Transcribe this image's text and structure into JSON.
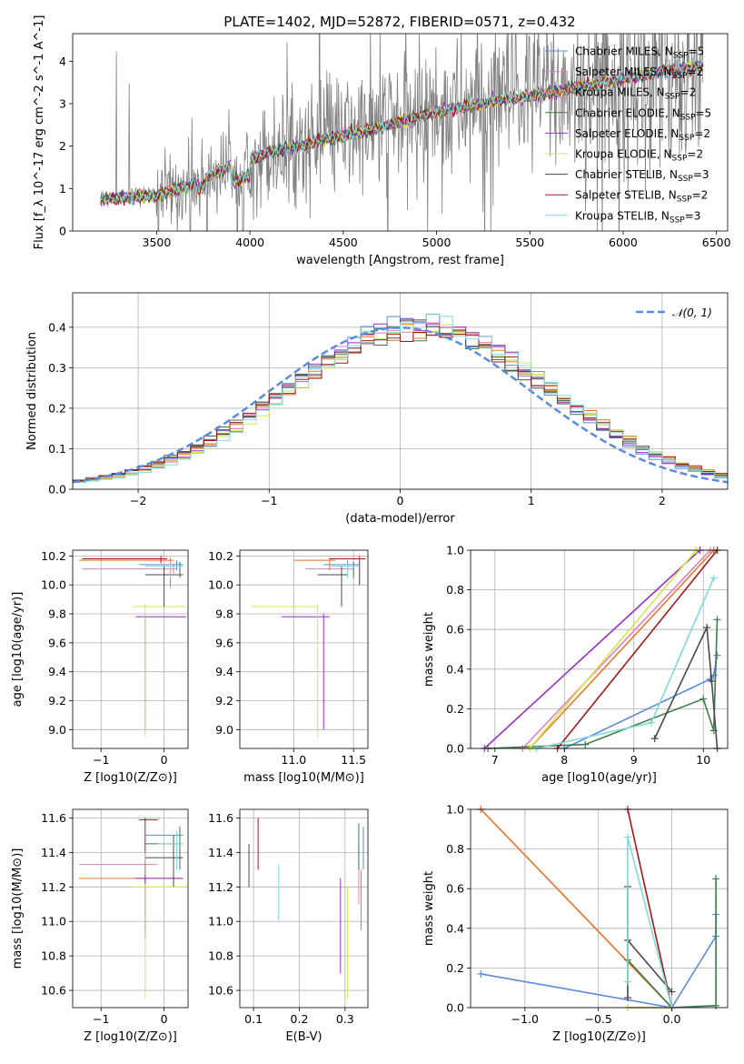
{
  "title": "PLATE=1402, MJD=52872, FIBERID=0571, z=0.432",
  "colors": {
    "Chabrier MILES": "#5b8bd9",
    "Salpeter MILES": "#e37fbd",
    "Kroupa MILES": "#e8792a",
    "Chabrier ELODIE": "#3e7c4e",
    "Salpeter ELODIE": "#9b2fc0",
    "Kroupa ELODIE": "#d4e84a",
    "Chabrier STELIB": "#4a4a4a",
    "Salpeter STELIB": "#a01818",
    "Kroupa STELIB": "#7fdadc",
    "data": "#808080",
    "normal": "#5b8bd9"
  },
  "models": [
    {
      "name": "Chabrier MILES",
      "nssp": "5"
    },
    {
      "name": "Salpeter MILES",
      "nssp": "2"
    },
    {
      "name": "Kroupa MILES",
      "nssp": "2"
    },
    {
      "name": "Chabrier ELODIE",
      "nssp": "5"
    },
    {
      "name": "Salpeter ELODIE",
      "nssp": "2"
    },
    {
      "name": "Kroupa ELODIE",
      "nssp": "2"
    },
    {
      "name": "Chabrier STELIB",
      "nssp": "3"
    },
    {
      "name": "Salpeter STELIB",
      "nssp": "2"
    },
    {
      "name": "Kroupa STELIB",
      "nssp": "3"
    }
  ],
  "chart_data": [
    {
      "type": "line",
      "title": "PLATE=1402, MJD=52872, FIBERID=0571, z=0.432",
      "xlabel": "wavelength [Angstrom, rest frame]",
      "ylabel": "Flux [f_λ 10^-17 erg cm^-2 s^-1 A^-1]",
      "xlim": [
        3050,
        6560
      ],
      "ylim": [
        0,
        4.65
      ],
      "xticks": [
        3500,
        4000,
        4500,
        5000,
        5500,
        6000,
        6500
      ],
      "yticks": [
        0,
        1,
        2,
        3,
        4
      ],
      "continuum": {
        "x": [
          3200,
          3500,
          3700,
          3900,
          4100,
          4400,
          4700,
          5000,
          5300,
          5600,
          5900,
          6200,
          6430
        ],
        "y": [
          0.75,
          0.85,
          1.1,
          1.55,
          1.85,
          2.15,
          2.45,
          2.8,
          3.05,
          3.25,
          3.5,
          3.75,
          3.9
        ]
      },
      "legend_position": "upper right"
    },
    {
      "type": "bar",
      "xlabel": "(data-model)/error",
      "ylabel": "Normed distribution",
      "xlim": [
        -2.5,
        2.5
      ],
      "ylim": [
        0,
        0.485
      ],
      "xticks": [
        -2,
        -1,
        0,
        1,
        2
      ],
      "yticks": [
        0.0,
        0.1,
        0.2,
        0.3,
        0.4
      ],
      "bin_width": 0.1,
      "series": [
        {
          "name": "N(0,1)",
          "mean": 0,
          "sigma": 1
        }
      ],
      "legend_position": "upper right"
    },
    {
      "type": "scatter",
      "xlabel": "Z [log10(Z/Z⊙)]",
      "ylabel": "age [log10(age/yr)]",
      "xlim": [
        -1.45,
        0.38
      ],
      "ylim": [
        8.87,
        10.24
      ],
      "xticks": [
        -1,
        0
      ],
      "yticks": [
        9.0,
        9.2,
        9.4,
        9.6,
        9.8,
        10.0,
        10.2
      ],
      "points": [
        {
          "model": "Chabrier MILES",
          "x": 0.2,
          "y": 10.14,
          "xlo": -0.4,
          "xhi": 0.3,
          "ylo": 10.1,
          "yhi": 10.17
        },
        {
          "model": "Salpeter MILES",
          "x": 0.15,
          "y": 10.11,
          "xlo": -1.3,
          "xhi": 0.2,
          "ylo": 10.08,
          "yhi": 10.15
        },
        {
          "model": "Kroupa MILES",
          "x": 0.1,
          "y": 10.17,
          "xlo": -1.35,
          "xhi": 0.15,
          "ylo": 9.98,
          "yhi": 10.19
        },
        {
          "model": "Chabrier ELODIE",
          "x": 0.25,
          "y": 10.13,
          "xlo": -0.3,
          "xhi": 0.3,
          "ylo": 10.05,
          "yhi": 10.16
        },
        {
          "model": "Salpeter ELODIE",
          "x": -0.3,
          "y": 9.78,
          "xlo": -0.45,
          "xhi": 0.35,
          "ylo": 9.0,
          "yhi": 9.8
        },
        {
          "model": "Kroupa ELODIE",
          "x": -0.3,
          "y": 9.85,
          "xlo": -0.5,
          "xhi": 0.35,
          "ylo": 8.95,
          "yhi": 9.87
        },
        {
          "model": "Chabrier STELIB",
          "x": 0.0,
          "y": 10.07,
          "xlo": -0.3,
          "xhi": 0.3,
          "ylo": 9.85,
          "yhi": 10.13
        },
        {
          "model": "Salpeter STELIB",
          "x": -0.05,
          "y": 10.18,
          "xlo": -1.3,
          "xhi": 0.05,
          "ylo": 10.15,
          "yhi": 10.2
        },
        {
          "model": "Kroupa STELIB",
          "x": 0.1,
          "y": 10.13,
          "xlo": -0.3,
          "xhi": 0.3,
          "ylo": 10.05,
          "yhi": 10.15
        }
      ]
    },
    {
      "type": "scatter",
      "xlabel": "mass [log10(M/M⊙)]",
      "ylabel": "",
      "xlim": [
        10.55,
        11.62
      ],
      "ylim": [
        8.87,
        10.24
      ],
      "xticks": [
        11.0,
        11.5
      ],
      "yticks": [
        9.0,
        9.2,
        9.4,
        9.6,
        9.8,
        10.0,
        10.2
      ],
      "points": [
        {
          "model": "Chabrier MILES",
          "x": 11.45,
          "y": 10.14,
          "xlo": 11.25,
          "xhi": 11.55,
          "ylo": 10.1,
          "yhi": 10.17
        },
        {
          "model": "Salpeter MILES",
          "x": 11.45,
          "y": 10.11,
          "xlo": 11.1,
          "xhi": 11.5,
          "ylo": 10.08,
          "yhi": 10.15
        },
        {
          "model": "Kroupa MILES",
          "x": 11.3,
          "y": 10.17,
          "xlo": 11.0,
          "xhi": 11.35,
          "ylo": 10.1,
          "yhi": 10.19
        },
        {
          "model": "Chabrier ELODIE",
          "x": 11.5,
          "y": 10.13,
          "xlo": 11.3,
          "xhi": 11.55,
          "ylo": 10.05,
          "yhi": 10.16
        },
        {
          "model": "Salpeter ELODIE",
          "x": 11.25,
          "y": 9.78,
          "xlo": 10.9,
          "xhi": 11.3,
          "ylo": 9.0,
          "yhi": 9.8
        },
        {
          "model": "Kroupa ELODIE",
          "x": 11.2,
          "y": 9.85,
          "xlo": 10.65,
          "xhi": 11.2,
          "ylo": 8.95,
          "yhi": 9.87
        },
        {
          "model": "Chabrier STELIB",
          "x": 11.4,
          "y": 10.07,
          "xlo": 11.2,
          "xhi": 11.45,
          "ylo": 9.85,
          "yhi": 10.13
        },
        {
          "model": "Salpeter STELIB",
          "x": 11.55,
          "y": 10.18,
          "xlo": 11.3,
          "xhi": 11.6,
          "ylo": 10.0,
          "yhi": 10.2
        },
        {
          "model": "Kroupa STELIB",
          "x": 11.45,
          "y": 10.13,
          "xlo": 11.3,
          "xhi": 11.55,
          "ylo": 10.05,
          "yhi": 10.15
        }
      ]
    },
    {
      "type": "line",
      "xlabel": "age [log10(age/yr)]",
      "ylabel": "mass weight",
      "xlim": [
        6.65,
        10.35
      ],
      "ylim": [
        0,
        1.0
      ],
      "xticks": [
        7,
        8,
        9,
        10
      ],
      "yticks": [
        0.0,
        0.2,
        0.4,
        0.6,
        0.8,
        1.0
      ],
      "series": [
        {
          "name": "Chabrier MILES",
          "x": [
            8.0,
            10.1,
            10.15,
            10.2
          ],
          "y": [
            0.0,
            0.35,
            0.37,
            0.47
          ]
        },
        {
          "name": "Salpeter MILES",
          "x": [
            7.4,
            10.1
          ],
          "y": [
            0.0,
            1.0
          ]
        },
        {
          "name": "Kroupa MILES",
          "x": [
            7.5,
            10.15
          ],
          "y": [
            0.0,
            1.0
          ]
        },
        {
          "name": "Chabrier ELODIE",
          "x": [
            6.9,
            8.3,
            10.0,
            10.15,
            10.2
          ],
          "y": [
            0.0,
            0.02,
            0.25,
            0.09,
            0.65
          ]
        },
        {
          "name": "Salpeter ELODIE",
          "x": [
            6.85,
            9.95
          ],
          "y": [
            0.0,
            1.0
          ]
        },
        {
          "name": "Kroupa ELODIE",
          "x": [
            7.5,
            9.9
          ],
          "y": [
            0.0,
            1.0
          ]
        },
        {
          "name": "Chabrier STELIB",
          "x": [
            9.3,
            10.05,
            10.12,
            10.2
          ],
          "y": [
            0.05,
            0.61,
            0.34,
            0.0
          ]
        },
        {
          "name": "Salpeter STELIB",
          "x": [
            7.9,
            10.2
          ],
          "y": [
            0.0,
            1.0
          ]
        },
        {
          "name": "Kroupa STELIB",
          "x": [
            7.6,
            9.25,
            10.15
          ],
          "y": [
            0.0,
            0.13,
            0.86
          ]
        }
      ]
    },
    {
      "type": "scatter",
      "xlabel": "Z [log10(Z/Z⊙)]",
      "ylabel": "mass [log10(M/M⊙)]",
      "xlim": [
        -1.45,
        0.38
      ],
      "ylim": [
        10.5,
        11.65
      ],
      "xticks": [
        -1,
        0
      ],
      "yticks": [
        10.6,
        10.8,
        11.0,
        11.2,
        11.4,
        11.6
      ],
      "points": [
        {
          "model": "Chabrier MILES",
          "x": 0.25,
          "y": 11.5,
          "xlo": -0.3,
          "xhi": 0.3,
          "ylo": 11.35,
          "yhi": 11.55
        },
        {
          "model": "Salpeter MILES",
          "x": -0.3,
          "y": 11.33,
          "xlo": -1.35,
          "xhi": -0.1,
          "ylo": 11.2,
          "yhi": 11.4
        },
        {
          "model": "Kroupa MILES",
          "x": -0.3,
          "y": 11.25,
          "xlo": -1.35,
          "xhi": 0.3,
          "ylo": 10.95,
          "yhi": 11.35
        },
        {
          "model": "Chabrier ELODIE",
          "x": 0.25,
          "y": 11.45,
          "xlo": -0.3,
          "xhi": 0.3,
          "ylo": 11.3,
          "yhi": 11.55
        },
        {
          "model": "Salpeter ELODIE",
          "x": -0.3,
          "y": 11.25,
          "xlo": -0.45,
          "xhi": 0.3,
          "ylo": 10.9,
          "yhi": 11.27
        },
        {
          "model": "Kroupa ELODIE",
          "x": -0.3,
          "y": 11.2,
          "xlo": -0.5,
          "xhi": 0.35,
          "ylo": 10.55,
          "yhi": 11.22
        },
        {
          "model": "Chabrier STELIB",
          "x": 0.15,
          "y": 11.37,
          "xlo": -0.3,
          "xhi": 0.3,
          "ylo": 11.2,
          "yhi": 11.5
        },
        {
          "model": "Salpeter STELIB",
          "x": -0.3,
          "y": 11.59,
          "xlo": -0.4,
          "xhi": -0.1,
          "ylo": 11.4,
          "yhi": 11.6
        },
        {
          "model": "Kroupa STELIB",
          "x": 0.2,
          "y": 11.45,
          "xlo": -0.1,
          "xhi": 0.3,
          "ylo": 11.3,
          "yhi": 11.52
        }
      ]
    },
    {
      "type": "scatter",
      "xlabel": "E(B-V)",
      "ylabel": "",
      "xlim": [
        0.07,
        0.35
      ],
      "ylim": [
        10.5,
        11.65
      ],
      "xticks": [
        0.1,
        0.2,
        0.3
      ],
      "yticks": [
        10.6,
        10.8,
        11.0,
        11.2,
        11.4,
        11.6
      ],
      "points": [
        {
          "model": "Chabrier MILES",
          "x": 0.34,
          "y": 11.45,
          "xlo": 0.34,
          "xhi": 0.34,
          "ylo": 11.3,
          "yhi": 11.55
        },
        {
          "model": "Salpeter MILES",
          "x": 0.33,
          "y": 11.35,
          "xlo": 0.33,
          "xhi": 0.33,
          "ylo": 11.1,
          "yhi": 11.45
        },
        {
          "model": "Kroupa MILES",
          "x": 0.335,
          "y": 11.2,
          "xlo": 0.335,
          "xhi": 0.335,
          "ylo": 10.95,
          "yhi": 11.3
        },
        {
          "model": "Chabrier ELODIE",
          "x": 0.33,
          "y": 11.45,
          "xlo": 0.33,
          "xhi": 0.33,
          "ylo": 11.3,
          "yhi": 11.57
        },
        {
          "model": "Salpeter ELODIE",
          "x": 0.29,
          "y": 11.1,
          "xlo": 0.29,
          "xhi": 0.29,
          "ylo": 10.7,
          "yhi": 11.25
        },
        {
          "model": "Kroupa ELODIE",
          "x": 0.305,
          "y": 10.9,
          "xlo": 0.305,
          "xhi": 0.305,
          "ylo": 10.55,
          "yhi": 11.2
        },
        {
          "model": "Chabrier STELIB",
          "x": 0.09,
          "y": 11.35,
          "xlo": 0.09,
          "xhi": 0.09,
          "ylo": 11.2,
          "yhi": 11.45
        },
        {
          "model": "Salpeter STELIB",
          "x": 0.11,
          "y": 11.5,
          "xlo": 0.11,
          "xhi": 0.11,
          "ylo": 11.3,
          "yhi": 11.6
        },
        {
          "model": "Kroupa STELIB",
          "x": 0.155,
          "y": 11.2,
          "xlo": 0.155,
          "xhi": 0.155,
          "ylo": 11.0,
          "yhi": 11.33
        }
      ]
    },
    {
      "type": "line",
      "xlabel": "Z [log10(Z/Z⊙)]",
      "ylabel": "mass weight",
      "xlim": [
        -1.37,
        0.38
      ],
      "ylim": [
        0,
        1.0
      ],
      "xticks": [
        -1.0,
        -0.5,
        0.0
      ],
      "yticks": [
        0.0,
        0.2,
        0.4,
        0.6,
        0.8,
        1.0
      ],
      "series": [
        {
          "name": "Chabrier MILES",
          "x": [
            -1.3,
            0.0,
            0.3,
            0.3
          ],
          "y": [
            0.17,
            0.0,
            0.36,
            0.47
          ]
        },
        {
          "name": "Salpeter MILES",
          "x": [
            -1.3,
            0.0
          ],
          "y": [
            1.0,
            0.0
          ]
        },
        {
          "name": "Kroupa MILES",
          "x": [
            -1.3,
            0.0
          ],
          "y": [
            1.0,
            0.0
          ]
        },
        {
          "name": "Chabrier ELODIE",
          "x": [
            -0.3,
            0.0,
            0.3,
            0.3
          ],
          "y": [
            0.24,
            0.0,
            0.01,
            0.65
          ]
        },
        {
          "name": "Salpeter ELODIE",
          "x": [
            -0.3,
            0.0
          ],
          "y": [
            0.0,
            0.0
          ]
        },
        {
          "name": "Kroupa ELODIE",
          "x": [
            -0.3,
            0.0
          ],
          "y": [
            0.0,
            0.0
          ]
        },
        {
          "name": "Chabrier STELIB",
          "x": [
            -0.3,
            -0.3,
            -0.3,
            0.0
          ],
          "y": [
            0.05,
            0.61,
            0.34,
            0.08
          ]
        },
        {
          "name": "Salpeter STELIB",
          "x": [
            -0.3,
            0.0
          ],
          "y": [
            1.0,
            0.0
          ]
        },
        {
          "name": "Kroupa STELIB",
          "x": [
            -0.3,
            -0.3,
            0.0
          ],
          "y": [
            0.13,
            0.86,
            0.0
          ]
        }
      ]
    }
  ]
}
